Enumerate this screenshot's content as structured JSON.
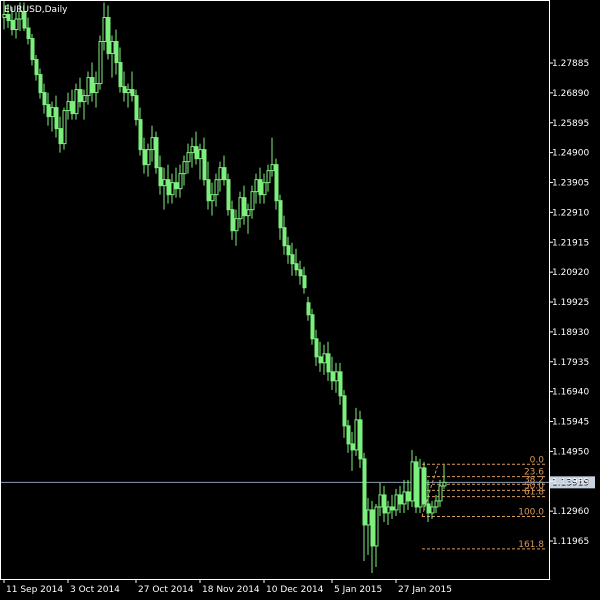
{
  "chart_data": {
    "type": "candlestick",
    "title": "EURUSD,Daily",
    "ylim": [
      1.107,
      1.2995
    ],
    "y_ticks": [
      "1.27885",
      "1.26890",
      "1.25895",
      "1.24900",
      "1.23905",
      "1.22910",
      "1.21915",
      "1.20920",
      "1.19925",
      "1.18930",
      "1.17935",
      "1.16940",
      "1.15945",
      "1.14950",
      "1.13955",
      "1.12960",
      "1.11965"
    ],
    "x_ticks": [
      "11 Sep 2014",
      "3 Oct 2014",
      "27 Oct 2014",
      "18 Nov 2014",
      "10 Dec 2014",
      "5 Jan 2015",
      "27 Jan 2015"
    ],
    "x_tick_bar_index": [
      0,
      16,
      33,
      49,
      65,
      82,
      98
    ],
    "current_price": "1.13919",
    "current_price_value": 1.13919,
    "fibonacci": {
      "swing_high": 1.1452,
      "swing_low": 1.1278,
      "levels": [
        {
          "label": "0.0",
          "ratio": 0.0
        },
        {
          "label": "23.6",
          "ratio": 0.236
        },
        {
          "label": "38.2",
          "ratio": 0.382
        },
        {
          "label": "50.0",
          "ratio": 0.5
        },
        {
          "label": "61.8",
          "ratio": 0.618
        },
        {
          "label": "100.0",
          "ratio": 1.0
        },
        {
          "label": "161.8",
          "ratio": 1.618
        }
      ]
    },
    "colors": {
      "candle": "#7cf07c",
      "background": "#000000",
      "axis": "#ffffff",
      "fib": "#d99a5e",
      "price_line": "#8a9bb5"
    },
    "bars": [
      [
        1.294,
        1.2995,
        1.29,
        1.295
      ],
      [
        1.295,
        1.2985,
        1.2905,
        1.293
      ],
      [
        1.293,
        1.2975,
        1.288,
        1.29
      ],
      [
        1.29,
        1.296,
        1.287,
        1.2935
      ],
      [
        1.2935,
        1.299,
        1.2895,
        1.296
      ],
      [
        1.296,
        1.299,
        1.2895,
        1.2905
      ],
      [
        1.2905,
        1.294,
        1.285,
        1.287
      ],
      [
        1.287,
        1.2885,
        1.278,
        1.28
      ],
      [
        1.28,
        1.2815,
        1.273,
        1.275
      ],
      [
        1.275,
        1.277,
        1.267,
        1.269
      ],
      [
        1.269,
        1.272,
        1.262,
        1.265
      ],
      [
        1.265,
        1.269,
        1.258,
        1.261
      ],
      [
        1.261,
        1.266,
        1.256,
        1.264
      ],
      [
        1.264,
        1.268,
        1.254,
        1.257
      ],
      [
        1.257,
        1.261,
        1.249,
        1.252
      ],
      [
        1.252,
        1.264,
        1.25,
        1.263
      ],
      [
        1.263,
        1.269,
        1.26,
        1.266
      ],
      [
        1.266,
        1.27,
        1.26,
        1.262
      ],
      [
        1.262,
        1.272,
        1.26,
        1.27
      ],
      [
        1.27,
        1.274,
        1.264,
        1.266
      ],
      [
        1.266,
        1.27,
        1.26,
        1.268
      ],
      [
        1.268,
        1.276,
        1.265,
        1.274
      ],
      [
        1.274,
        1.279,
        1.266,
        1.269
      ],
      [
        1.269,
        1.276,
        1.264,
        1.272
      ],
      [
        1.272,
        1.288,
        1.27,
        1.286
      ],
      [
        1.286,
        1.299,
        1.283,
        1.294
      ],
      [
        1.294,
        1.298,
        1.28,
        1.282
      ],
      [
        1.282,
        1.288,
        1.274,
        1.286
      ],
      [
        1.286,
        1.29,
        1.275,
        1.279
      ],
      [
        1.279,
        1.284,
        1.269,
        1.271
      ],
      [
        1.271,
        1.276,
        1.266,
        1.269
      ],
      [
        1.269,
        1.272,
        1.264,
        1.27
      ],
      [
        1.27,
        1.276,
        1.266,
        1.268
      ],
      [
        1.268,
        1.27,
        1.258,
        1.26
      ],
      [
        1.26,
        1.264,
        1.248,
        1.25
      ],
      [
        1.25,
        1.254,
        1.242,
        1.245
      ],
      [
        1.245,
        1.252,
        1.241,
        1.25
      ],
      [
        1.25,
        1.258,
        1.246,
        1.254
      ],
      [
        1.254,
        1.256,
        1.242,
        1.244
      ],
      [
        1.244,
        1.248,
        1.235,
        1.238
      ],
      [
        1.238,
        1.244,
        1.23,
        1.24
      ],
      [
        1.24,
        1.245,
        1.232,
        1.235
      ],
      [
        1.235,
        1.242,
        1.232,
        1.239
      ],
      [
        1.239,
        1.244,
        1.234,
        1.237
      ],
      [
        1.237,
        1.245,
        1.234,
        1.242
      ],
      [
        1.242,
        1.248,
        1.238,
        1.246
      ],
      [
        1.246,
        1.252,
        1.242,
        1.249
      ],
      [
        1.249,
        1.254,
        1.244,
        1.251
      ],
      [
        1.251,
        1.256,
        1.245,
        1.247
      ],
      [
        1.247,
        1.252,
        1.24,
        1.25
      ],
      [
        1.25,
        1.254,
        1.238,
        1.24
      ],
      [
        1.24,
        1.246,
        1.23,
        1.233
      ],
      [
        1.233,
        1.239,
        1.228,
        1.235
      ],
      [
        1.235,
        1.242,
        1.231,
        1.24
      ],
      [
        1.24,
        1.246,
        1.236,
        1.244
      ],
      [
        1.244,
        1.248,
        1.238,
        1.24
      ],
      [
        1.24,
        1.242,
        1.228,
        1.23
      ],
      [
        1.23,
        1.233,
        1.22,
        1.223
      ],
      [
        1.223,
        1.23,
        1.218,
        1.227
      ],
      [
        1.227,
        1.236,
        1.224,
        1.234
      ],
      [
        1.234,
        1.238,
        1.225,
        1.228
      ],
      [
        1.228,
        1.232,
        1.222,
        1.23
      ],
      [
        1.23,
        1.238,
        1.227,
        1.236
      ],
      [
        1.236,
        1.242,
        1.232,
        1.24
      ],
      [
        1.24,
        1.244,
        1.232,
        1.235
      ],
      [
        1.235,
        1.242,
        1.232,
        1.239
      ],
      [
        1.239,
        1.245,
        1.236,
        1.243
      ],
      [
        1.243,
        1.254,
        1.241,
        1.245
      ],
      [
        1.245,
        1.247,
        1.23,
        1.233
      ],
      [
        1.233,
        1.235,
        1.22,
        1.224
      ],
      [
        1.224,
        1.228,
        1.215,
        1.218
      ],
      [
        1.218,
        1.221,
        1.212,
        1.215
      ],
      [
        1.215,
        1.219,
        1.208,
        1.212
      ],
      [
        1.212,
        1.217,
        1.208,
        1.21
      ],
      [
        1.21,
        1.213,
        1.205,
        1.208
      ],
      [
        1.208,
        1.211,
        1.202,
        1.204
      ],
      [
        1.199,
        1.201,
        1.193,
        1.195
      ],
      [
        1.195,
        1.197,
        1.185,
        1.187
      ],
      [
        1.187,
        1.19,
        1.178,
        1.181
      ],
      [
        1.181,
        1.186,
        1.176,
        1.179
      ],
      [
        1.179,
        1.185,
        1.175,
        1.182
      ],
      [
        1.182,
        1.186,
        1.173,
        1.176
      ],
      [
        1.176,
        1.181,
        1.17,
        1.173
      ],
      [
        1.173,
        1.179,
        1.169,
        1.176
      ],
      [
        1.176,
        1.179,
        1.165,
        1.168
      ],
      [
        1.168,
        1.17,
        1.154,
        1.158
      ],
      [
        1.158,
        1.16,
        1.149,
        1.152
      ],
      [
        1.152,
        1.156,
        1.143,
        1.15
      ],
      [
        1.15,
        1.164,
        1.148,
        1.16
      ],
      [
        1.16,
        1.163,
        1.144,
        1.147
      ],
      [
        1.147,
        1.149,
        1.113,
        1.125
      ],
      [
        1.125,
        1.134,
        1.115,
        1.13
      ],
      [
        1.13,
        1.133,
        1.109,
        1.118
      ],
      [
        1.118,
        1.132,
        1.111,
        1.131
      ],
      [
        1.131,
        1.139,
        1.128,
        1.135
      ],
      [
        1.135,
        1.138,
        1.126,
        1.129
      ],
      [
        1.129,
        1.133,
        1.125,
        1.131
      ],
      [
        1.131,
        1.135,
        1.127,
        1.13
      ],
      [
        1.13,
        1.137,
        1.128,
        1.135
      ],
      [
        1.135,
        1.138,
        1.129,
        1.132
      ],
      [
        1.132,
        1.14,
        1.129,
        1.136
      ],
      [
        1.136,
        1.14,
        1.13,
        1.133
      ],
      [
        1.133,
        1.15,
        1.131,
        1.146
      ],
      [
        1.146,
        1.148,
        1.129,
        1.131
      ],
      [
        1.131,
        1.147,
        1.129,
        1.144
      ],
      [
        1.144,
        1.146,
        1.13,
        1.132
      ],
      [
        1.132,
        1.14,
        1.126,
        1.129
      ],
      [
        1.129,
        1.133,
        1.127,
        1.131
      ],
      [
        1.131,
        1.135,
        1.129,
        1.133
      ],
      [
        1.133,
        1.14,
        1.131,
        1.138
      ],
      [
        1.138,
        1.145,
        1.137,
        1.1392
      ]
    ]
  }
}
